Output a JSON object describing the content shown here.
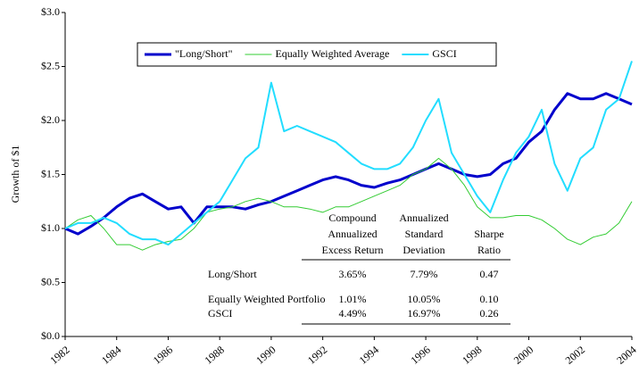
{
  "chart_data": {
    "type": "line",
    "y_label": "Growth of $1",
    "x": [
      1982,
      1982.5,
      1983,
      1983.5,
      1984,
      1984.5,
      1985,
      1985.5,
      1986,
      1986.5,
      1987,
      1987.5,
      1988,
      1988.5,
      1989,
      1989.5,
      1990,
      1990.5,
      1991,
      1991.5,
      1992,
      1992.5,
      1993,
      1993.5,
      1994,
      1994.5,
      1995,
      1995.5,
      1996,
      1996.5,
      1997,
      1997.5,
      1998,
      1998.5,
      1999,
      1999.5,
      2000,
      2000.5,
      2001,
      2001.5,
      2002,
      2002.5,
      2003,
      2003.5,
      2004
    ],
    "series": [
      {
        "name": "\"Long/Short\"",
        "color": "#0000cc",
        "width": 3,
        "values": [
          1.0,
          0.95,
          1.02,
          1.1,
          1.2,
          1.28,
          1.32,
          1.25,
          1.18,
          1.2,
          1.05,
          1.2,
          1.2,
          1.2,
          1.18,
          1.22,
          1.25,
          1.3,
          1.35,
          1.4,
          1.45,
          1.48,
          1.45,
          1.4,
          1.38,
          1.42,
          1.45,
          1.5,
          1.55,
          1.6,
          1.55,
          1.5,
          1.48,
          1.5,
          1.6,
          1.65,
          1.8,
          1.9,
          2.1,
          2.25,
          2.2,
          2.2,
          2.25,
          2.2,
          2.15
        ]
      },
      {
        "name": "Equally Weighted Average",
        "color": "#33cc33",
        "width": 1,
        "values": [
          1.0,
          1.08,
          1.12,
          1.0,
          0.85,
          0.85,
          0.8,
          0.85,
          0.88,
          0.9,
          1.0,
          1.15,
          1.18,
          1.2,
          1.25,
          1.28,
          1.25,
          1.2,
          1.2,
          1.18,
          1.15,
          1.2,
          1.2,
          1.25,
          1.3,
          1.35,
          1.4,
          1.5,
          1.55,
          1.65,
          1.55,
          1.4,
          1.2,
          1.1,
          1.1,
          1.12,
          1.12,
          1.08,
          1.0,
          0.9,
          0.85,
          0.92,
          0.95,
          1.05,
          1.25
        ]
      },
      {
        "name": "GSCI",
        "color": "#22ddff",
        "width": 2,
        "values": [
          1.0,
          1.05,
          1.05,
          1.1,
          1.05,
          0.95,
          0.9,
          0.9,
          0.85,
          0.95,
          1.05,
          1.15,
          1.25,
          1.45,
          1.65,
          1.75,
          2.35,
          1.9,
          1.95,
          1.9,
          1.85,
          1.8,
          1.7,
          1.6,
          1.55,
          1.55,
          1.6,
          1.75,
          2.0,
          2.2,
          1.7,
          1.5,
          1.3,
          1.15,
          1.45,
          1.7,
          1.85,
          2.1,
          1.6,
          1.35,
          1.65,
          1.75,
          2.1,
          2.2,
          2.55
        ]
      }
    ],
    "xlim": [
      1982,
      2004
    ],
    "xticks": [
      1982,
      1984,
      1986,
      1988,
      1990,
      1992,
      1994,
      1996,
      1998,
      2000,
      2002,
      2004
    ],
    "ylim": [
      0,
      3
    ],
    "yticks": [
      {
        "value": 0,
        "label": "$0.0"
      },
      {
        "value": 0.5,
        "label": "$0.5"
      },
      {
        "value": 1,
        "label": "$1.0"
      },
      {
        "value": 1.5,
        "label": "$1.5"
      },
      {
        "value": 2,
        "label": "$2.0"
      },
      {
        "value": 2.5,
        "label": "$2.5"
      },
      {
        "value": 3,
        "label": "$3.0"
      }
    ],
    "legend": "top",
    "table": {
      "columns": [
        [
          "Compound",
          "Annualized",
          "Excess Return"
        ],
        [
          "Annualized",
          "Standard",
          "Deviation"
        ],
        [
          "Sharpe",
          "Ratio"
        ]
      ],
      "rows": [
        [
          "Long/Short",
          "3.65%",
          "7.79%",
          "0.47"
        ],
        [
          "Equally Weighted Portfolio",
          "1.01%",
          "10.05%",
          "0.10"
        ],
        [
          "GSCI",
          "4.49%",
          "16.97%",
          "0.26"
        ]
      ]
    }
  }
}
